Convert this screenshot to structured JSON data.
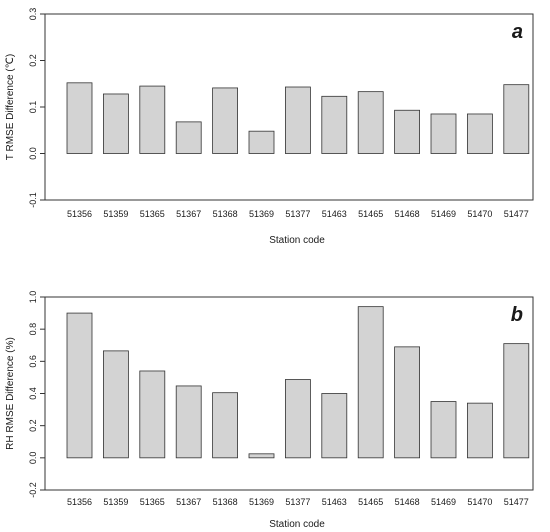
{
  "chart_data": [
    {
      "type": "bar",
      "panel_label": "a",
      "categories": [
        "51356",
        "51359",
        "51365",
        "51367",
        "51368",
        "51369",
        "51377",
        "51463",
        "51465",
        "51468",
        "51469",
        "51470",
        "51477"
      ],
      "values": [
        0.152,
        0.128,
        0.145,
        0.068,
        0.141,
        0.048,
        0.143,
        0.123,
        0.133,
        0.093,
        0.085,
        0.085,
        0.148
      ],
      "xlabel": "Station code",
      "ylabel": "T RMSE Difference (℃)",
      "ylim": [
        -0.1,
        0.3
      ],
      "yticks": [
        "-0.1",
        "0.0",
        "0.1",
        "0.2",
        "0.3"
      ],
      "bar_color": "#d3d3d3",
      "grid": false,
      "legend": "none"
    },
    {
      "type": "bar",
      "panel_label": "b",
      "categories": [
        "51356",
        "51359",
        "51365",
        "51367",
        "51368",
        "51369",
        "51377",
        "51463",
        "51465",
        "51468",
        "51469",
        "51470",
        "51477"
      ],
      "values": [
        0.9,
        0.665,
        0.54,
        0.447,
        0.405,
        0.025,
        0.487,
        0.4,
        0.94,
        0.69,
        0.35,
        0.34,
        0.71
      ],
      "xlabel": "Station code",
      "ylabel": "RH RMSE Difference (%)",
      "ylim": [
        -0.2,
        1.0
      ],
      "yticks": [
        "-0.2",
        "0.0",
        "0.2",
        "0.4",
        "0.6",
        "0.8",
        "1.0"
      ],
      "bar_color": "#d3d3d3",
      "grid": false,
      "legend": "none"
    }
  ]
}
